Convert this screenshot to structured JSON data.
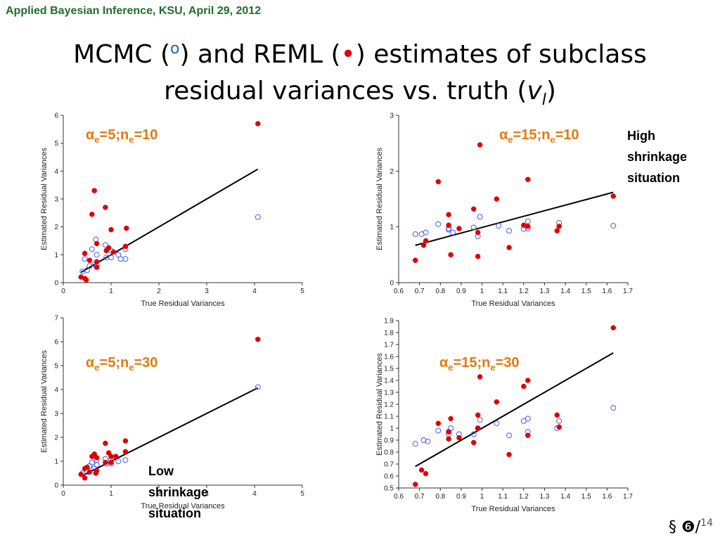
{
  "header": "Applied Bayesian Inference, KSU, April 29, 2012",
  "title": {
    "line1_pre": "MCMC (",
    "mcmc_symbol": "o",
    "line1_mid": ") and REML (",
    "reml_symbol": "•",
    "line1_post": ") estimates of subclass",
    "line2_pre": "residual variances vs. truth (",
    "v_symbol": "v",
    "v_sub": "l",
    "line2_post": ")"
  },
  "colors": {
    "mcmc": "#4a5cf0",
    "reml": "#e00000",
    "label": "#e07a10",
    "line": "#000000"
  },
  "notes": {
    "high": [
      "High",
      "shrinkage",
      "situation"
    ],
    "low": [
      "Low",
      "shrinkage",
      "situation"
    ]
  },
  "footer": {
    "section": "§ ❻/",
    "page": "14"
  },
  "chart_data": [
    {
      "type": "scatter",
      "label": {
        "alpha": "α",
        "e1": "e",
        "mid": "=5;n",
        "e2": "e",
        "end": "=10"
      },
      "xlabel": "True Residual Variances",
      "ylabel": "Estimated Residual Variances",
      "xlim": [
        0,
        5
      ],
      "ylim": [
        0,
        6
      ],
      "xticks": [
        0,
        1,
        2,
        3,
        4,
        5
      ],
      "yticks": [
        0,
        1,
        2,
        3,
        4,
        5,
        6
      ],
      "line": [
        [
          0.37,
          0.37
        ],
        [
          4.07,
          4.07
        ]
      ],
      "series": [
        {
          "marker": "open-circle",
          "points": [
            [
              0.4,
              0.4
            ],
            [
              0.45,
              0.85
            ],
            [
              0.5,
              0.45
            ],
            [
              0.55,
              0.6
            ],
            [
              0.6,
              1.2
            ],
            [
              0.65,
              0.65
            ],
            [
              0.68,
              1.55
            ],
            [
              0.7,
              1.0
            ],
            [
              0.7,
              0.6
            ],
            [
              0.88,
              1.35
            ],
            [
              0.9,
              0.9
            ],
            [
              1.0,
              1.15
            ],
            [
              1.0,
              0.9
            ],
            [
              1.15,
              1.0
            ],
            [
              1.2,
              0.85
            ],
            [
              1.3,
              1.2
            ],
            [
              1.3,
              0.85
            ],
            [
              4.07,
              2.35
            ]
          ]
        },
        {
          "marker": "filled-circle",
          "points": [
            [
              0.37,
              0.2
            ],
            [
              0.45,
              0.15
            ],
            [
              0.48,
              0.1
            ],
            [
              0.45,
              1.05
            ],
            [
              0.55,
              0.8
            ],
            [
              0.6,
              2.45
            ],
            [
              0.65,
              3.3
            ],
            [
              0.7,
              0.75
            ],
            [
              0.7,
              0.55
            ],
            [
              0.7,
              1.4
            ],
            [
              0.88,
              2.7
            ],
            [
              0.9,
              1.15
            ],
            [
              0.95,
              1.25
            ],
            [
              1.0,
              1.9
            ],
            [
              1.05,
              1.1
            ],
            [
              1.3,
              1.3
            ],
            [
              1.32,
              1.95
            ],
            [
              4.07,
              5.7
            ]
          ]
        }
      ]
    },
    {
      "type": "scatter",
      "label": {
        "alpha": "α",
        "e1": "e",
        "mid": "=15;n",
        "e2": "e",
        "end": "=10"
      },
      "xlabel": "True Residual Variances",
      "ylabel": "Estimated Residual Variances",
      "xlim": [
        0.6,
        1.7
      ],
      "ylim": [
        0,
        3
      ],
      "xticks": [
        0.6,
        0.7,
        0.8,
        0.9,
        1.0,
        1.1,
        1.2,
        1.3,
        1.4,
        1.5,
        1.6,
        1.7
      ],
      "yticks": [
        0,
        1,
        2,
        3
      ],
      "line": [
        [
          0.68,
          0.67
        ],
        [
          1.63,
          1.62
        ]
      ],
      "series": [
        {
          "marker": "open-circle",
          "points": [
            [
              0.68,
              0.87
            ],
            [
              0.71,
              0.87
            ],
            [
              0.73,
              0.9
            ],
            [
              0.79,
              1.05
            ],
            [
              0.84,
              0.95
            ],
            [
              0.84,
              0.97
            ],
            [
              0.86,
              0.9
            ],
            [
              0.96,
              0.99
            ],
            [
              0.98,
              0.83
            ],
            [
              0.99,
              1.18
            ],
            [
              1.08,
              1.02
            ],
            [
              1.13,
              0.93
            ],
            [
              1.2,
              0.96
            ],
            [
              1.22,
              1.1
            ],
            [
              1.22,
              0.97
            ],
            [
              1.37,
              1.07
            ],
            [
              1.63,
              1.02
            ]
          ]
        },
        {
          "marker": "filled-circle",
          "points": [
            [
              0.68,
              0.4
            ],
            [
              0.72,
              0.67
            ],
            [
              0.73,
              0.75
            ],
            [
              0.79,
              1.81
            ],
            [
              0.84,
              1.22
            ],
            [
              0.84,
              1.03
            ],
            [
              0.85,
              0.5
            ],
            [
              0.89,
              0.97
            ],
            [
              0.96,
              1.32
            ],
            [
              0.98,
              0.9
            ],
            [
              0.98,
              0.47
            ],
            [
              0.99,
              2.47
            ],
            [
              1.07,
              1.5
            ],
            [
              1.13,
              0.63
            ],
            [
              1.2,
              1.03
            ],
            [
              1.22,
              1.85
            ],
            [
              1.22,
              1.01
            ],
            [
              1.36,
              0.93
            ],
            [
              1.37,
              1.01
            ],
            [
              1.63,
              1.55
            ]
          ]
        }
      ]
    },
    {
      "type": "scatter",
      "label": {
        "alpha": "α",
        "e1": "e",
        "mid": "=5;n",
        "e2": "e",
        "end": "=30"
      },
      "xlabel": "True Residual Variances",
      "ylabel": "Estimated Residual Variances",
      "xlim": [
        0,
        5
      ],
      "ylim": [
        0,
        7
      ],
      "xticks": [
        0,
        1,
        2,
        3,
        4,
        5
      ],
      "yticks": [
        0,
        1,
        2,
        3,
        4,
        5,
        6,
        7
      ],
      "line": [
        [
          0.37,
          0.37
        ],
        [
          4.07,
          4.07
        ]
      ],
      "series": [
        {
          "marker": "open-circle",
          "points": [
            [
              0.4,
              0.5
            ],
            [
              0.5,
              0.55
            ],
            [
              0.55,
              0.8
            ],
            [
              0.6,
              0.95
            ],
            [
              0.65,
              0.7
            ],
            [
              0.7,
              1.05
            ],
            [
              0.7,
              0.85
            ],
            [
              0.88,
              1.1
            ],
            [
              0.9,
              0.9
            ],
            [
              1.0,
              0.9
            ],
            [
              1.0,
              1.05
            ],
            [
              1.15,
              1.0
            ],
            [
              1.3,
              1.05
            ],
            [
              4.07,
              4.1
            ]
          ]
        },
        {
          "marker": "filled-circle",
          "points": [
            [
              0.37,
              0.45
            ],
            [
              0.45,
              0.3
            ],
            [
              0.45,
              0.7
            ],
            [
              0.5,
              0.75
            ],
            [
              0.55,
              0.55
            ],
            [
              0.6,
              1.2
            ],
            [
              0.65,
              1.3
            ],
            [
              0.68,
              0.5
            ],
            [
              0.7,
              0.6
            ],
            [
              0.7,
              1.15
            ],
            [
              0.88,
              1.75
            ],
            [
              0.88,
              0.95
            ],
            [
              0.95,
              1.35
            ],
            [
              1.0,
              1.2
            ],
            [
              1.0,
              0.95
            ],
            [
              1.1,
              1.2
            ],
            [
              1.3,
              1.85
            ],
            [
              1.3,
              1.4
            ],
            [
              4.07,
              6.1
            ]
          ]
        }
      ]
    },
    {
      "type": "scatter",
      "label": {
        "alpha": "α",
        "e1": "e",
        "mid": "=15;n",
        "e2": "e",
        "end": "=30"
      },
      "xlabel": "True Residual Variances",
      "ylabel": "Estimated Residual Variances",
      "xlim": [
        0.6,
        1.7
      ],
      "ylim": [
        0.5,
        1.9
      ],
      "xticks": [
        0.6,
        0.7,
        0.8,
        0.9,
        1.0,
        1.1,
        1.2,
        1.3,
        1.4,
        1.5,
        1.6,
        1.7
      ],
      "yticks": [
        0.5,
        0.6,
        0.7,
        0.8,
        0.9,
        1.0,
        1.1,
        1.2,
        1.3,
        1.4,
        1.5,
        1.6,
        1.7,
        1.8,
        1.9
      ],
      "line": [
        [
          0.68,
          0.68
        ],
        [
          1.63,
          1.63
        ]
      ],
      "series": [
        {
          "marker": "open-circle",
          "points": [
            [
              0.68,
              0.87
            ],
            [
              0.72,
              0.9
            ],
            [
              0.74,
              0.89
            ],
            [
              0.79,
              0.98
            ],
            [
              0.84,
              0.97
            ],
            [
              0.84,
              0.95
            ],
            [
              0.85,
              1.0
            ],
            [
              0.89,
              0.95
            ],
            [
              0.96,
              0.95
            ],
            [
              0.98,
              1.0
            ],
            [
              0.99,
              1.07
            ],
            [
              1.07,
              1.04
            ],
            [
              1.13,
              0.94
            ],
            [
              1.2,
              1.06
            ],
            [
              1.22,
              1.08
            ],
            [
              1.22,
              0.97
            ],
            [
              1.36,
              1.0
            ],
            [
              1.37,
              1.06
            ],
            [
              1.63,
              1.17
            ]
          ]
        },
        {
          "marker": "filled-circle",
          "points": [
            [
              0.68,
              0.53
            ],
            [
              0.71,
              0.65
            ],
            [
              0.73,
              0.62
            ],
            [
              0.79,
              1.04
            ],
            [
              0.84,
              0.97
            ],
            [
              0.84,
              0.91
            ],
            [
              0.85,
              1.08
            ],
            [
              0.89,
              0.92
            ],
            [
              0.96,
              0.88
            ],
            [
              0.98,
              1.11
            ],
            [
              0.98,
              1.0
            ],
            [
              0.99,
              1.43
            ],
            [
              1.07,
              1.22
            ],
            [
              1.13,
              0.78
            ],
            [
              1.2,
              1.35
            ],
            [
              1.22,
              1.4
            ],
            [
              1.22,
              0.94
            ],
            [
              1.36,
              1.11
            ],
            [
              1.37,
              1.01
            ],
            [
              1.63,
              1.84
            ]
          ]
        }
      ]
    }
  ]
}
